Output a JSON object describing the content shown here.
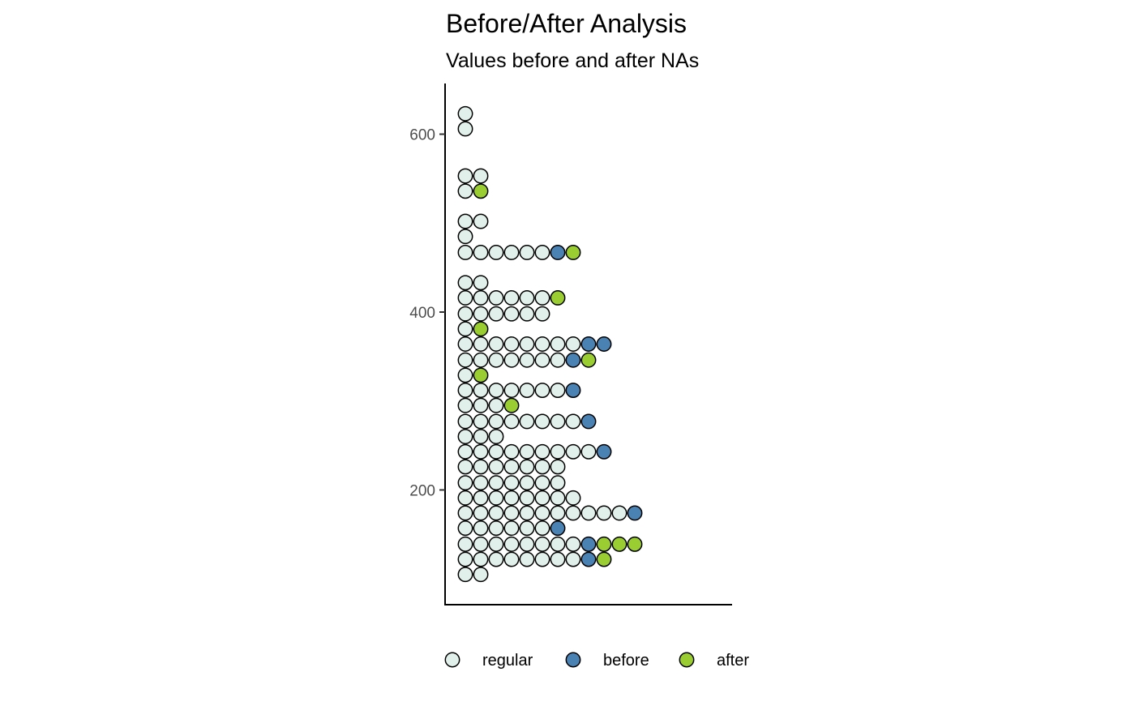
{
  "chart_data": {
    "type": "dot",
    "title": "Before/After Analysis",
    "subtitle": "Values before and after NAs",
    "xlabel": "",
    "ylabel": "",
    "ylim": [
      71,
      657
    ],
    "y_ticks": [
      200,
      400,
      600
    ],
    "y_tick_labels": [
      "200",
      "400",
      "600"
    ],
    "grid": false,
    "legend": {
      "position": "bottom",
      "entries": [
        {
          "key": "regular",
          "label": "regular",
          "color": "#e2f0ec"
        },
        {
          "key": "before",
          "label": "before",
          "color": "#4a82b4"
        },
        {
          "key": "after",
          "label": "after",
          "color": "#9acd32"
        }
      ]
    },
    "bins": [
      {
        "y": 623,
        "dots": [
          "regular"
        ]
      },
      {
        "y": 606,
        "dots": [
          "regular"
        ]
      },
      {
        "y": 553,
        "dots": [
          "regular",
          "regular"
        ]
      },
      {
        "y": 536,
        "dots": [
          "regular",
          "after"
        ]
      },
      {
        "y": 502,
        "dots": [
          "regular",
          "regular"
        ]
      },
      {
        "y": 485,
        "dots": [
          "regular"
        ]
      },
      {
        "y": 467,
        "dots": [
          "regular",
          "regular",
          "regular",
          "regular",
          "regular",
          "regular",
          "before",
          "after"
        ]
      },
      {
        "y": 433,
        "dots": [
          "regular",
          "regular"
        ]
      },
      {
        "y": 416,
        "dots": [
          "regular",
          "regular",
          "regular",
          "regular",
          "regular",
          "regular",
          "after"
        ]
      },
      {
        "y": 398,
        "dots": [
          "regular",
          "regular",
          "regular",
          "regular",
          "regular",
          "regular"
        ]
      },
      {
        "y": 381,
        "dots": [
          "regular",
          "after"
        ]
      },
      {
        "y": 364,
        "dots": [
          "regular",
          "regular",
          "regular",
          "regular",
          "regular",
          "regular",
          "regular",
          "regular",
          "before",
          "before"
        ]
      },
      {
        "y": 346,
        "dots": [
          "regular",
          "regular",
          "regular",
          "regular",
          "regular",
          "regular",
          "regular",
          "before",
          "after"
        ]
      },
      {
        "y": 329,
        "dots": [
          "regular",
          "after"
        ]
      },
      {
        "y": 312,
        "dots": [
          "regular",
          "regular",
          "regular",
          "regular",
          "regular",
          "regular",
          "regular",
          "before"
        ]
      },
      {
        "y": 295,
        "dots": [
          "regular",
          "regular",
          "regular",
          "after"
        ]
      },
      {
        "y": 277,
        "dots": [
          "regular",
          "regular",
          "regular",
          "regular",
          "regular",
          "regular",
          "regular",
          "regular",
          "before"
        ]
      },
      {
        "y": 260,
        "dots": [
          "regular",
          "regular",
          "regular"
        ]
      },
      {
        "y": 243,
        "dots": [
          "regular",
          "regular",
          "regular",
          "regular",
          "regular",
          "regular",
          "regular",
          "regular",
          "regular",
          "before"
        ]
      },
      {
        "y": 226,
        "dots": [
          "regular",
          "regular",
          "regular",
          "regular",
          "regular",
          "regular",
          "regular"
        ]
      },
      {
        "y": 208,
        "dots": [
          "regular",
          "regular",
          "regular",
          "regular",
          "regular",
          "regular",
          "regular"
        ]
      },
      {
        "y": 191,
        "dots": [
          "regular",
          "regular",
          "regular",
          "regular",
          "regular",
          "regular",
          "regular",
          "regular"
        ]
      },
      {
        "y": 174,
        "dots": [
          "regular",
          "regular",
          "regular",
          "regular",
          "regular",
          "regular",
          "regular",
          "regular",
          "regular",
          "regular",
          "regular",
          "before"
        ]
      },
      {
        "y": 157,
        "dots": [
          "regular",
          "regular",
          "regular",
          "regular",
          "regular",
          "regular",
          "before"
        ]
      },
      {
        "y": 139,
        "dots": [
          "regular",
          "regular",
          "regular",
          "regular",
          "regular",
          "regular",
          "regular",
          "regular",
          "before",
          "after",
          "after",
          "after"
        ]
      },
      {
        "y": 122,
        "dots": [
          "regular",
          "regular",
          "regular",
          "regular",
          "regular",
          "regular",
          "regular",
          "regular",
          "before",
          "after"
        ]
      },
      {
        "y": 105,
        "dots": [
          "regular",
          "regular"
        ]
      }
    ]
  }
}
